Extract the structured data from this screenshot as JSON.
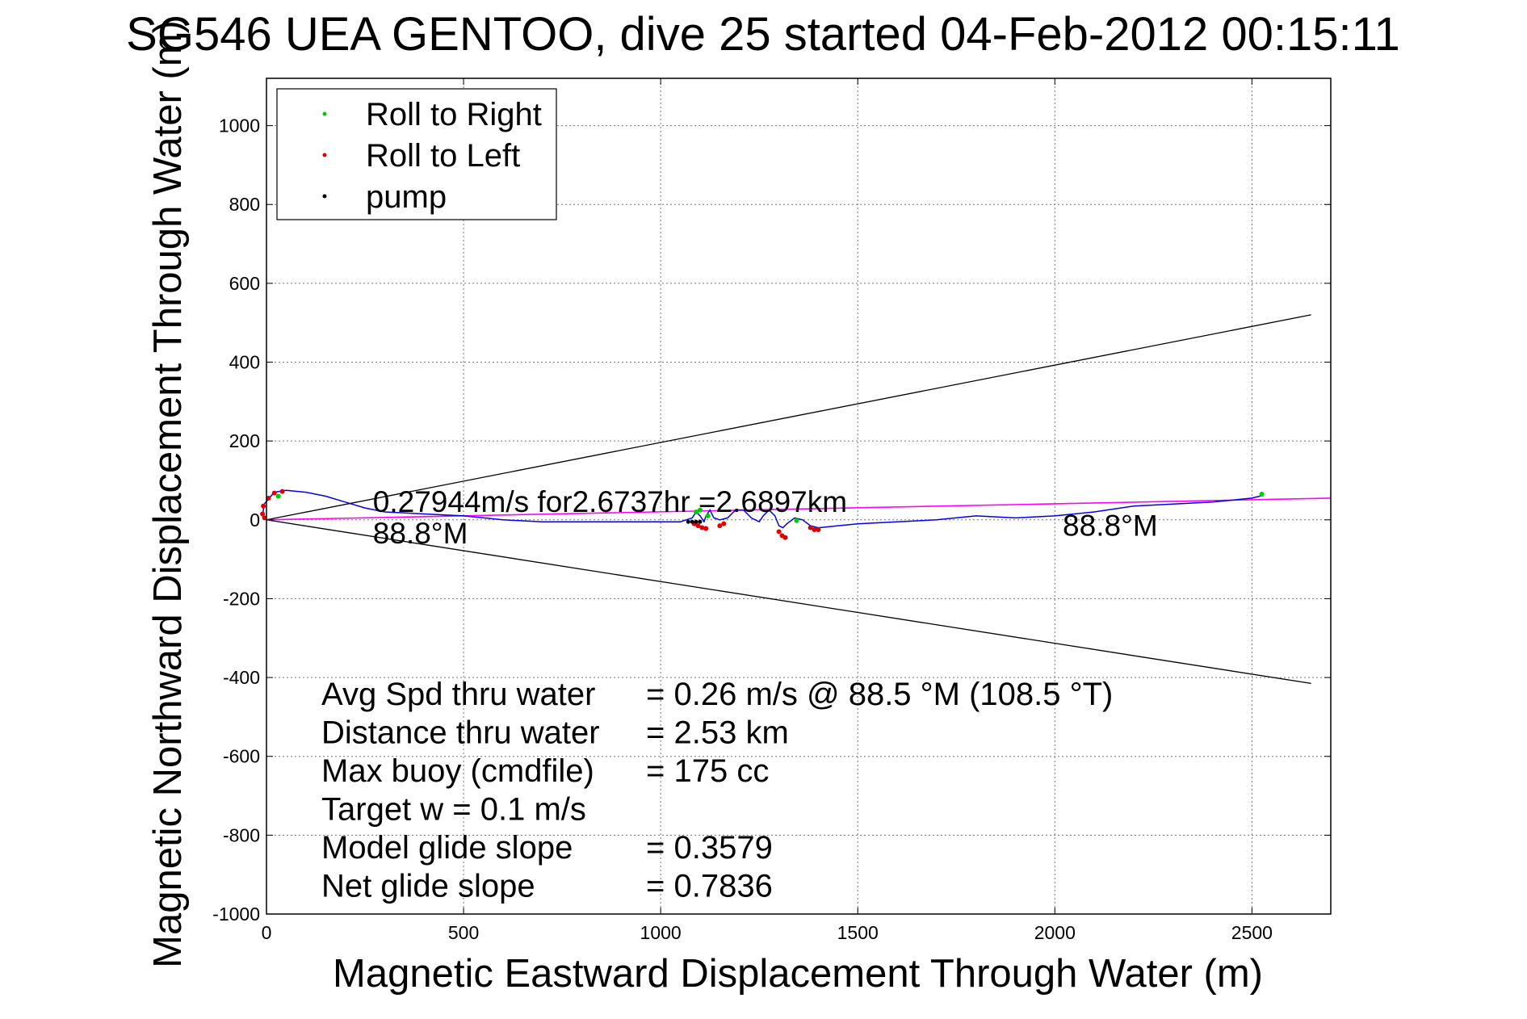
{
  "chart_data": {
    "type": "line",
    "title": "SG546 UEA GENTOO, dive 25 started 04-Feb-2012 00:15:11",
    "xlabel": "Magnetic Eastward Displacement Through Water (m)",
    "ylabel": "Magnetic Northward Displacement Through Water (m)",
    "xlim": [
      0,
      2700
    ],
    "ylim": [
      -1000,
      1120
    ],
    "xticks": [
      0,
      500,
      1000,
      1500,
      2000,
      2500
    ],
    "yticks": [
      -1000,
      -800,
      -600,
      -400,
      -200,
      0,
      200,
      400,
      600,
      800,
      1000
    ],
    "grid": true,
    "legend_position": "top-left",
    "legend": [
      {
        "label": "Roll to Right",
        "color": "#00cc00"
      },
      {
        "label": "Roll to Left",
        "color": "#e00000"
      },
      {
        "label": "pump",
        "color": "#000000"
      }
    ],
    "track": [
      [
        0,
        0
      ],
      [
        -10,
        10
      ],
      [
        -6,
        40
      ],
      [
        20,
        70
      ],
      [
        50,
        75
      ],
      [
        100,
        70
      ],
      [
        150,
        60
      ],
      [
        200,
        45
      ],
      [
        250,
        30
      ],
      [
        300,
        20
      ],
      [
        400,
        15
      ],
      [
        500,
        10
      ],
      [
        600,
        0
      ],
      [
        700,
        -5
      ],
      [
        800,
        -5
      ],
      [
        900,
        -5
      ],
      [
        1000,
        -5
      ],
      [
        1050,
        -5
      ],
      [
        1080,
        5
      ],
      [
        1090,
        20
      ],
      [
        1100,
        10
      ],
      [
        1110,
        -5
      ],
      [
        1115,
        10
      ],
      [
        1125,
        25
      ],
      [
        1135,
        5
      ],
      [
        1150,
        0
      ],
      [
        1170,
        5
      ],
      [
        1180,
        15
      ],
      [
        1190,
        25
      ],
      [
        1210,
        25
      ],
      [
        1230,
        5
      ],
      [
        1250,
        -5
      ],
      [
        1260,
        10
      ],
      [
        1275,
        25
      ],
      [
        1290,
        10
      ],
      [
        1300,
        -15
      ],
      [
        1310,
        -20
      ],
      [
        1320,
        -10
      ],
      [
        1340,
        5
      ],
      [
        1360,
        0
      ],
      [
        1380,
        -15
      ],
      [
        1400,
        -20
      ],
      [
        1450,
        -15
      ],
      [
        1500,
        -10
      ],
      [
        1600,
        -5
      ],
      [
        1700,
        0
      ],
      [
        1800,
        10
      ],
      [
        1900,
        5
      ],
      [
        2000,
        10
      ],
      [
        2100,
        20
      ],
      [
        2200,
        35
      ],
      [
        2300,
        40
      ],
      [
        2400,
        45
      ],
      [
        2450,
        50
      ],
      [
        2500,
        55
      ],
      [
        2520,
        60
      ],
      [
        2530,
        65
      ]
    ],
    "roll_right_points": [
      [
        1090,
        20
      ],
      [
        1100,
        25
      ],
      [
        1120,
        10
      ],
      [
        1345,
        -2
      ],
      [
        2525,
        65
      ],
      [
        30,
        60
      ]
    ],
    "roll_left_points": [
      [
        -5,
        5
      ],
      [
        -10,
        15
      ],
      [
        -8,
        35
      ],
      [
        5,
        55
      ],
      [
        20,
        68
      ],
      [
        40,
        72
      ],
      [
        1085,
        -10
      ],
      [
        1095,
        -15
      ],
      [
        1105,
        -20
      ],
      [
        1115,
        -22
      ],
      [
        1150,
        -15
      ],
      [
        1160,
        -10
      ],
      [
        1300,
        -30
      ],
      [
        1308,
        -40
      ],
      [
        1316,
        -45
      ],
      [
        1380,
        -20
      ],
      [
        1390,
        -25
      ],
      [
        1400,
        -25
      ]
    ],
    "pump_points": [
      [
        1070,
        -5
      ],
      [
        1080,
        -5
      ],
      [
        1090,
        -5
      ],
      [
        1100,
        -5
      ]
    ],
    "heading_line": {
      "from": [
        0,
        0
      ],
      "to": [
        2700,
        55
      ],
      "color": "#ff00ff"
    },
    "cone_lines": [
      {
        "from": [
          0,
          0
        ],
        "to": [
          2650,
          520
        ]
      },
      {
        "from": [
          0,
          0
        ],
        "to": [
          2650,
          -415
        ]
      }
    ],
    "annotations": [
      {
        "text": "0.27944m/s for2.6737hr =2.6897km",
        "x": 270,
        "y": 20
      },
      {
        "text": "88.8°M",
        "x": 270,
        "y": -60
      },
      {
        "text": "88.8°M",
        "x": 2020,
        "y": -40
      }
    ],
    "stats": [
      {
        "label": "Avg Spd thru water",
        "value": "=  0.26 m/s @  88.5 °M (108.5 °T)"
      },
      {
        "label": "Distance thru water",
        "value": "=  2.53 km"
      },
      {
        "label": "Max buoy (cmdfile)",
        "value": "= 175 cc"
      },
      {
        "label": "Target w    = 0.1 m/s",
        "value": ""
      },
      {
        "label": "Model glide slope",
        "value": "= 0.3579"
      },
      {
        "label": "Net glide slope",
        "value": "= 0.7836"
      }
    ]
  }
}
